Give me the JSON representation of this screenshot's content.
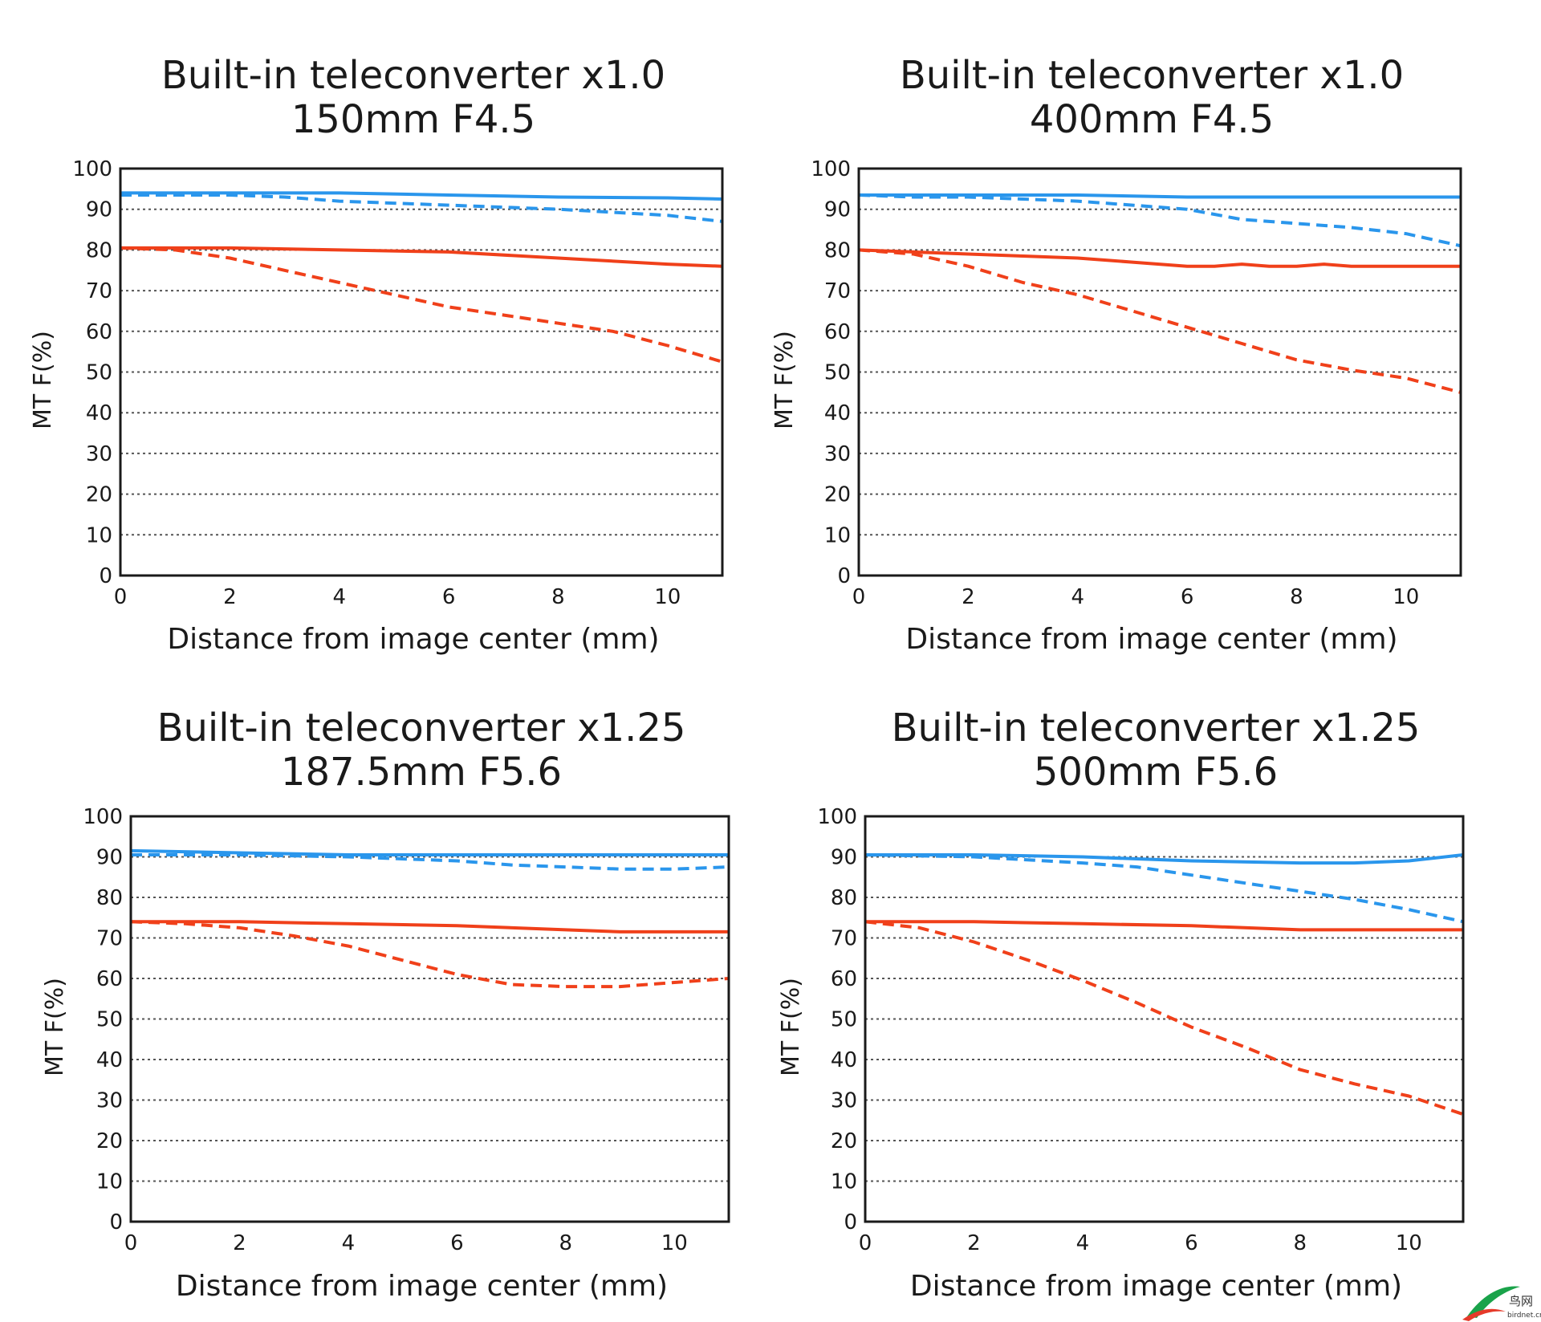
{
  "colors": {
    "blue": "#2a96ec",
    "red": "#f0401a",
    "grid": "#555555",
    "frame": "#1a1a1a"
  },
  "watermark": {
    "text": "鸟网",
    "subtext": "birdnet.cn"
  },
  "chart_data": [
    {
      "type": "line",
      "title": [
        "Built-in teleconverter x1.0",
        "150mm F4.5"
      ],
      "xlabel": "Distance from image center (mm)",
      "ylabel": "MT F(%)",
      "xlim": [
        0,
        11
      ],
      "ylim": [
        0,
        100
      ],
      "xticks": [
        0,
        2,
        4,
        6,
        8,
        10
      ],
      "yticks": [
        0,
        10,
        20,
        30,
        40,
        50,
        60,
        70,
        80,
        90,
        100
      ],
      "grid": "horizontal dotted",
      "series": [
        {
          "color": "blue",
          "style": "solid",
          "x": [
            0,
            2,
            4,
            6,
            8,
            10,
            11
          ],
          "y": [
            94,
            94,
            94,
            93.5,
            93,
            92.8,
            92.5
          ]
        },
        {
          "color": "blue",
          "style": "dashed",
          "x": [
            0,
            2,
            3,
            4,
            6,
            8,
            10,
            11
          ],
          "y": [
            93.5,
            93.5,
            93,
            92,
            91,
            90,
            88.5,
            87
          ]
        },
        {
          "color": "red",
          "style": "solid",
          "x": [
            0,
            2,
            4,
            6,
            8,
            10,
            11
          ],
          "y": [
            80.5,
            80.5,
            80,
            79.5,
            78,
            76.5,
            76
          ]
        },
        {
          "color": "red",
          "style": "dashed",
          "x": [
            0,
            1,
            2,
            3,
            4,
            5,
            6,
            7,
            8,
            9,
            10,
            11
          ],
          "y": [
            80.5,
            80,
            78,
            75,
            72,
            69,
            66,
            64,
            62,
            60,
            56.5,
            52.5
          ]
        }
      ]
    },
    {
      "type": "line",
      "title": [
        "Built-in teleconverter x1.0",
        "400mm F4.5"
      ],
      "xlabel": "Distance from image center (mm)",
      "ylabel": "MT F(%)",
      "xlim": [
        0,
        11
      ],
      "ylim": [
        0,
        100
      ],
      "xticks": [
        0,
        2,
        4,
        6,
        8,
        10
      ],
      "yticks": [
        0,
        10,
        20,
        30,
        40,
        50,
        60,
        70,
        80,
        90,
        100
      ],
      "grid": "horizontal dotted",
      "series": [
        {
          "color": "blue",
          "style": "solid",
          "x": [
            0,
            2,
            4,
            6,
            8,
            10,
            11
          ],
          "y": [
            93.5,
            93.5,
            93.5,
            93,
            93,
            93,
            93
          ]
        },
        {
          "color": "blue",
          "style": "dashed",
          "x": [
            0,
            1,
            2,
            3,
            4,
            5,
            6,
            7,
            8,
            9,
            10,
            11
          ],
          "y": [
            93.5,
            93,
            93,
            92.5,
            92,
            91,
            90,
            87.5,
            86.5,
            85.5,
            84,
            81
          ]
        },
        {
          "color": "red",
          "style": "solid",
          "x": [
            0,
            1,
            2,
            3,
            4,
            5,
            6,
            6.5,
            7,
            7.5,
            8,
            8.5,
            9,
            10,
            11
          ],
          "y": [
            80,
            79.5,
            79,
            78.5,
            78,
            77,
            76,
            76,
            76.5,
            76,
            76,
            76.5,
            76,
            76,
            76
          ]
        },
        {
          "color": "red",
          "style": "dashed",
          "x": [
            0,
            1,
            2,
            3,
            4,
            5,
            6,
            7,
            8,
            9,
            10,
            11
          ],
          "y": [
            80,
            79,
            76,
            72,
            69,
            65,
            61,
            57,
            53,
            50.5,
            48.5,
            45
          ]
        }
      ]
    },
    {
      "type": "line",
      "title": [
        "Built-in teleconverter x1.25",
        "187.5mm F5.6"
      ],
      "xlabel": "Distance from image center (mm)",
      "ylabel": "MT F(%)",
      "xlim": [
        0,
        11
      ],
      "ylim": [
        0,
        100
      ],
      "xticks": [
        0,
        2,
        4,
        6,
        8,
        10
      ],
      "yticks": [
        0,
        10,
        20,
        30,
        40,
        50,
        60,
        70,
        80,
        90,
        100
      ],
      "grid": "horizontal dotted",
      "series": [
        {
          "color": "blue",
          "style": "solid",
          "x": [
            0,
            2,
            4,
            6,
            8,
            10,
            11
          ],
          "y": [
            91.5,
            91,
            90.5,
            90.5,
            90.5,
            90.5,
            90.5
          ]
        },
        {
          "color": "blue",
          "style": "dashed",
          "x": [
            0,
            2,
            4,
            6,
            7,
            8,
            9,
            10,
            11
          ],
          "y": [
            90.5,
            90.5,
            90,
            89,
            88,
            87.5,
            87,
            87,
            87.5
          ]
        },
        {
          "color": "red",
          "style": "solid",
          "x": [
            0,
            2,
            4,
            6,
            8,
            9,
            10,
            11
          ],
          "y": [
            74,
            74,
            73.5,
            73,
            72,
            71.5,
            71.5,
            71.5
          ]
        },
        {
          "color": "red",
          "style": "dashed",
          "x": [
            0,
            1,
            2,
            3,
            4,
            5,
            6,
            7,
            8,
            9,
            10,
            11
          ],
          "y": [
            74,
            73.5,
            72.5,
            70.5,
            68,
            64.5,
            61,
            58.5,
            58,
            58,
            59,
            60
          ]
        }
      ]
    },
    {
      "type": "line",
      "title": [
        "Built-in teleconverter x1.25",
        "500mm F5.6"
      ],
      "xlabel": "Distance from image center (mm)",
      "ylabel": "MT F(%)",
      "xlim": [
        0,
        11
      ],
      "ylim": [
        0,
        100
      ],
      "xticks": [
        0,
        2,
        4,
        6,
        8,
        10
      ],
      "yticks": [
        0,
        10,
        20,
        30,
        40,
        50,
        60,
        70,
        80,
        90,
        100
      ],
      "grid": "horizontal dotted",
      "series": [
        {
          "color": "blue",
          "style": "solid",
          "x": [
            0,
            2,
            4,
            6,
            8,
            9,
            10,
            11
          ],
          "y": [
            90.5,
            90.5,
            90,
            89,
            88.5,
            88.5,
            89,
            90.5
          ]
        },
        {
          "color": "blue",
          "style": "dashed",
          "x": [
            0,
            2,
            4,
            5,
            6,
            7,
            8,
            9,
            10,
            11
          ],
          "y": [
            90.5,
            90,
            88.5,
            87.5,
            85.5,
            83.5,
            81.5,
            79.5,
            77,
            74
          ]
        },
        {
          "color": "red",
          "style": "solid",
          "x": [
            0,
            2,
            4,
            6,
            8,
            10,
            11
          ],
          "y": [
            74,
            74,
            73.5,
            73,
            72,
            72,
            72
          ]
        },
        {
          "color": "red",
          "style": "dashed",
          "x": [
            0,
            1,
            2,
            3,
            4,
            5,
            6,
            7,
            8,
            9,
            10,
            11
          ],
          "y": [
            74,
            72.5,
            69,
            64.5,
            59.5,
            54,
            48,
            43,
            37.5,
            34,
            31,
            26.5
          ]
        }
      ]
    }
  ]
}
